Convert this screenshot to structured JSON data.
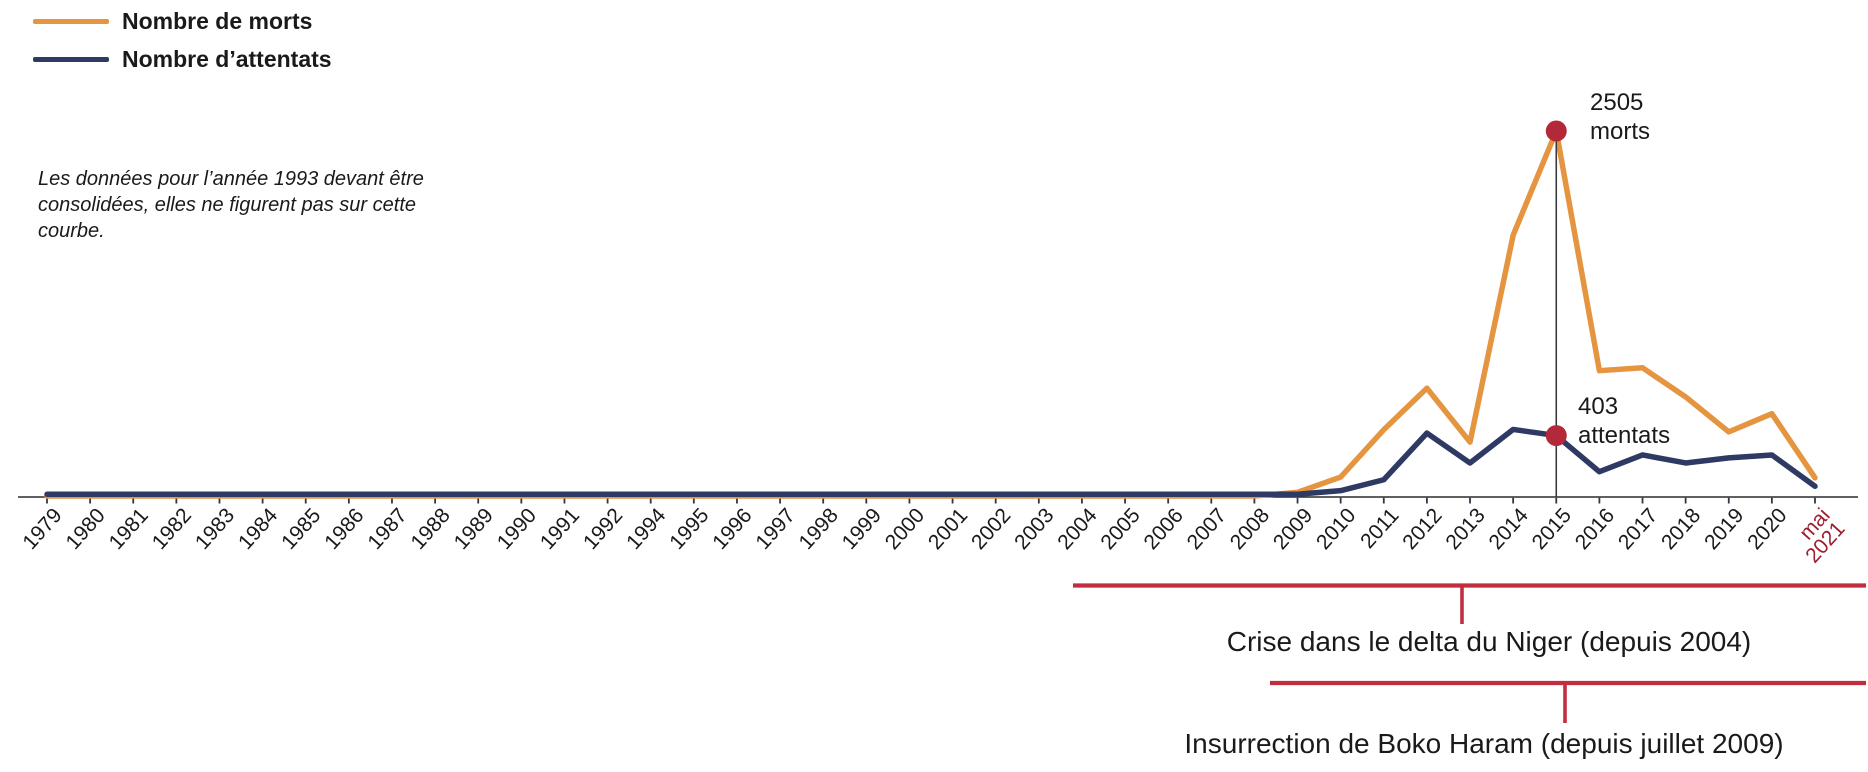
{
  "legend": {
    "items": [
      {
        "label": "Nombre de morts",
        "color": "#E5943F"
      },
      {
        "label": "Nombre d’attentats",
        "color": "#2E3A64"
      }
    ]
  },
  "note": "Les données pour l’année 1993 devant être\nconsolidées, elles ne figurent pas sur cette\ncourbe.",
  "annotations": {
    "morts_peak": {
      "year": "2015",
      "value": 2505,
      "text": "2505\nmorts"
    },
    "attentats_peak": {
      "year": "2015",
      "value": 403,
      "text": "403\nattentats"
    }
  },
  "brackets": [
    {
      "label": "Crise dans le delta du Niger (depuis 2004)"
    },
    {
      "label": "Insurrection de Boko Haram (depuis juillet 2009)"
    }
  ],
  "colors": {
    "morts_line": "#E5943F",
    "attentats_line": "#2E3A64",
    "marker_red": "#B3293A",
    "bracket_red": "#C12F3F",
    "axis": "#2B2B2B",
    "year_label": "#1A1A1A",
    "mai_2021_label": "#9E1E30"
  },
  "chart_data": {
    "type": "line",
    "title": "",
    "xlabel": "",
    "ylabel": "",
    "ylim": [
      0,
      2600
    ],
    "grid": false,
    "legend_position": "top-left",
    "note_on_missing_year": "1993 absent de l’axe (données non consolidées)",
    "categories": [
      "1979",
      "1980",
      "1981",
      "1982",
      "1983",
      "1984",
      "1985",
      "1986",
      "1987",
      "1988",
      "1989",
      "1990",
      "1991",
      "1992",
      "1994",
      "1995",
      "1996",
      "1997",
      "1998",
      "1999",
      "2000",
      "2001",
      "2002",
      "2003",
      "2004",
      "2005",
      "2006",
      "2007",
      "2008",
      "2009",
      "2010",
      "2011",
      "2012",
      "2013",
      "2014",
      "2015",
      "2016",
      "2017",
      "2018",
      "2019",
      "2020",
      "mai\n2021"
    ],
    "series": [
      {
        "name": "Nombre de morts",
        "color": "#E5943F",
        "values": [
          0,
          0,
          0,
          0,
          0,
          0,
          0,
          0,
          0,
          0,
          0,
          0,
          0,
          0,
          0,
          0,
          0,
          0,
          0,
          0,
          0,
          0,
          0,
          0,
          0,
          0,
          0,
          0,
          0,
          25,
          130,
          455,
          740,
          370,
          1790,
          2505,
          860,
          880,
          680,
          440,
          565,
          125
        ]
      },
      {
        "name": "Nombre d’attentats",
        "color": "#2E3A64",
        "values": [
          0,
          0,
          0,
          0,
          0,
          0,
          0,
          0,
          0,
          0,
          0,
          0,
          0,
          0,
          0,
          0,
          0,
          0,
          0,
          0,
          0,
          0,
          0,
          0,
          0,
          0,
          0,
          0,
          0,
          0,
          25,
          100,
          420,
          215,
          445,
          403,
          155,
          270,
          215,
          250,
          270,
          55
        ]
      }
    ]
  }
}
